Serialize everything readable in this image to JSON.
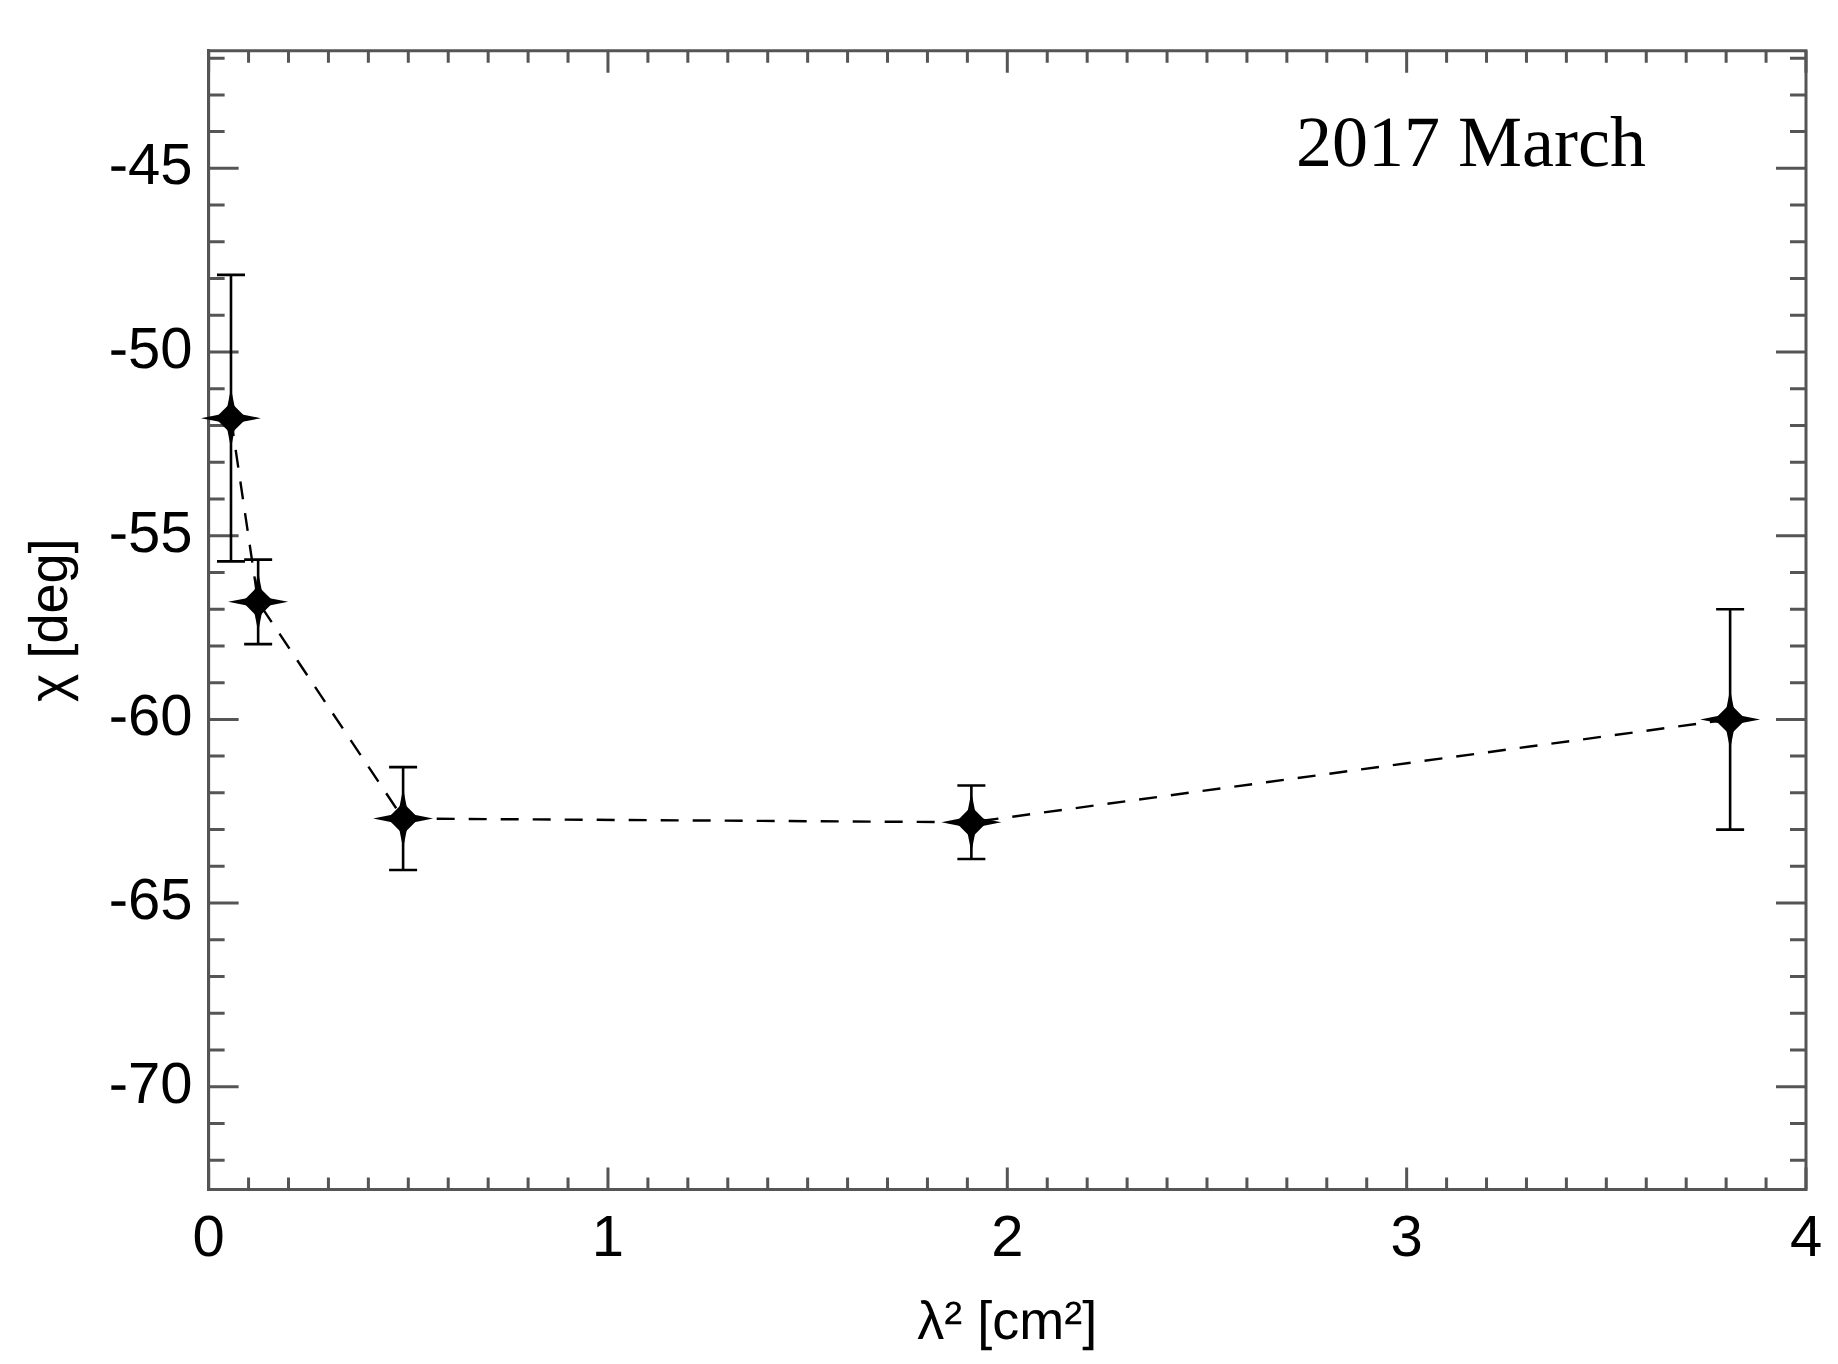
{
  "chart_data": {
    "type": "line",
    "xlabel": "λ² [cm²]",
    "ylabel": "χ [deg]",
    "annotations": [
      "2017 March"
    ],
    "x": [
      0.056,
      0.124,
      0.487,
      1.91,
      3.81
    ],
    "series": [
      {
        "color": "#000000",
        "values": [
          -51.8,
          -56.8,
          -62.7,
          -62.8,
          -60.0
        ],
        "errors": [
          3.9,
          1.15,
          1.4,
          1.0,
          3.0
        ]
      }
    ],
    "marker": "star",
    "line_style": "dashed",
    "grid": false,
    "legend": false,
    "xlim": [
      0,
      4
    ],
    "ylim": [
      -72.8,
      -41.8
    ],
    "xticks": [
      0,
      1,
      2,
      3,
      4,
      {
        "value": 0.1,
        "label": null
      },
      {
        "value": 0.2,
        "label": null
      },
      {
        "value": 0.3,
        "label": null
      },
      {
        "value": 0.4,
        "label": null
      },
      {
        "value": 0.5,
        "label": null
      },
      {
        "value": 0.6,
        "label": null
      },
      {
        "value": 0.7,
        "label": null
      },
      {
        "value": 0.8,
        "label": null
      },
      {
        "value": 0.9,
        "label": null
      },
      {
        "value": 1.1,
        "label": null
      },
      {
        "value": 1.2,
        "label": null
      },
      {
        "value": 1.3,
        "label": null
      },
      {
        "value": 1.4,
        "label": null
      },
      {
        "value": 1.5,
        "label": null
      },
      {
        "value": 1.6,
        "label": null
      },
      {
        "value": 1.7,
        "label": null
      },
      {
        "value": 1.8,
        "label": null
      },
      {
        "value": 1.9,
        "label": null
      },
      {
        "value": 2.1,
        "label": null
      },
      {
        "value": 2.2,
        "label": null
      },
      {
        "value": 2.3,
        "label": null
      },
      {
        "value": 2.4,
        "label": null
      },
      {
        "value": 2.5,
        "label": null
      },
      {
        "value": 2.6,
        "label": null
      },
      {
        "value": 2.7,
        "label": null
      },
      {
        "value": 2.8,
        "label": null
      },
      {
        "value": 2.9,
        "label": null
      },
      {
        "value": 3.1,
        "label": null
      },
      {
        "value": 3.2,
        "label": null
      },
      {
        "value": 3.3,
        "label": null
      },
      {
        "value": 3.4,
        "label": null
      },
      {
        "value": 3.5,
        "label": null
      },
      {
        "value": 3.6,
        "label": null
      },
      {
        "value": 3.7,
        "label": null
      },
      {
        "value": 3.8,
        "label": null
      },
      {
        "value": 3.9,
        "label": null
      }
    ],
    "yticks": [
      -70,
      -65,
      -60,
      -55,
      -50,
      -45,
      {
        "value": -72,
        "label": null
      },
      {
        "value": -71,
        "label": null
      },
      {
        "value": -69,
        "label": null
      },
      {
        "value": -68,
        "label": null
      },
      {
        "value": -67,
        "label": null
      },
      {
        "value": -66,
        "label": null
      },
      {
        "value": -64,
        "label": null
      },
      {
        "value": -63,
        "label": null
      },
      {
        "value": -62,
        "label": null
      },
      {
        "value": -61,
        "label": null
      },
      {
        "value": -59,
        "label": null
      },
      {
        "value": -58,
        "label": null
      },
      {
        "value": -57,
        "label": null
      },
      {
        "value": -56,
        "label": null
      },
      {
        "value": -54,
        "label": null
      },
      {
        "value": -53,
        "label": null
      },
      {
        "value": -52,
        "label": null
      },
      {
        "value": -51,
        "label": null
      },
      {
        "value": -49,
        "label": null
      },
      {
        "value": -48,
        "label": null
      },
      {
        "value": -47,
        "label": null
      },
      {
        "value": -46,
        "label": null
      },
      {
        "value": -44,
        "label": null
      },
      {
        "value": -43,
        "label": null
      },
      {
        "value": -42,
        "label": null
      }
    ]
  }
}
